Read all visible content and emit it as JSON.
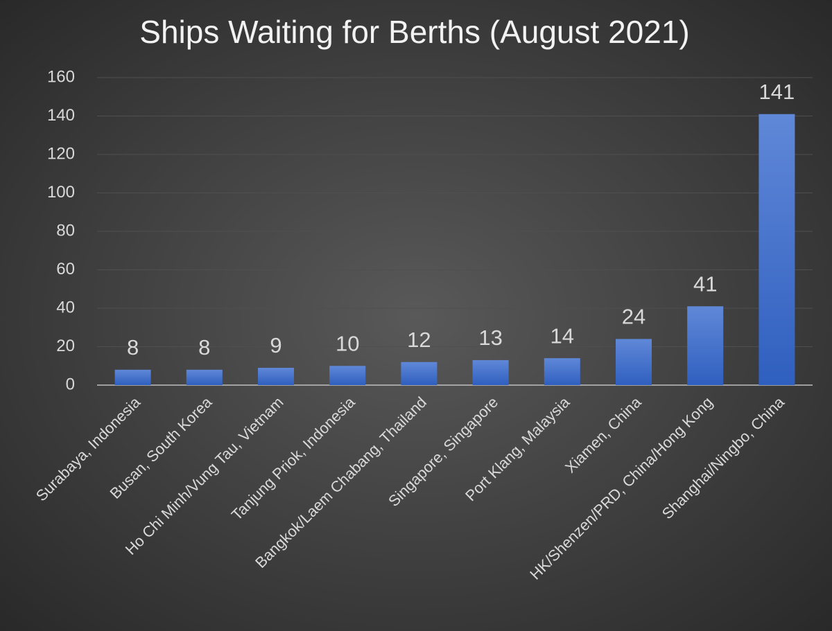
{
  "chart_data": {
    "type": "bar",
    "title": "Ships Waiting for Berths (August 2021)",
    "categories": [
      "Surabaya, Indonesia",
      "Busan, South Korea",
      "Ho Chi Minh/Vung Tau, Vietnam",
      "Tanjung Priok, Indonesia",
      "Bangkok/Laem Chabang, Thailand",
      "Singapore, Singapore",
      "Port Klang, Malaysia",
      "Xiamen, China",
      "HK/Shenzen/PRD, China/Hong Kong",
      "Shanghai/Ningbo, China"
    ],
    "values": [
      8,
      8,
      9,
      10,
      12,
      13,
      14,
      24,
      41,
      141
    ],
    "color": "#4472c4",
    "ylim": [
      0,
      160
    ],
    "yticks": [
      0,
      20,
      40,
      60,
      80,
      100,
      120,
      140,
      160
    ],
    "grid": true
  }
}
